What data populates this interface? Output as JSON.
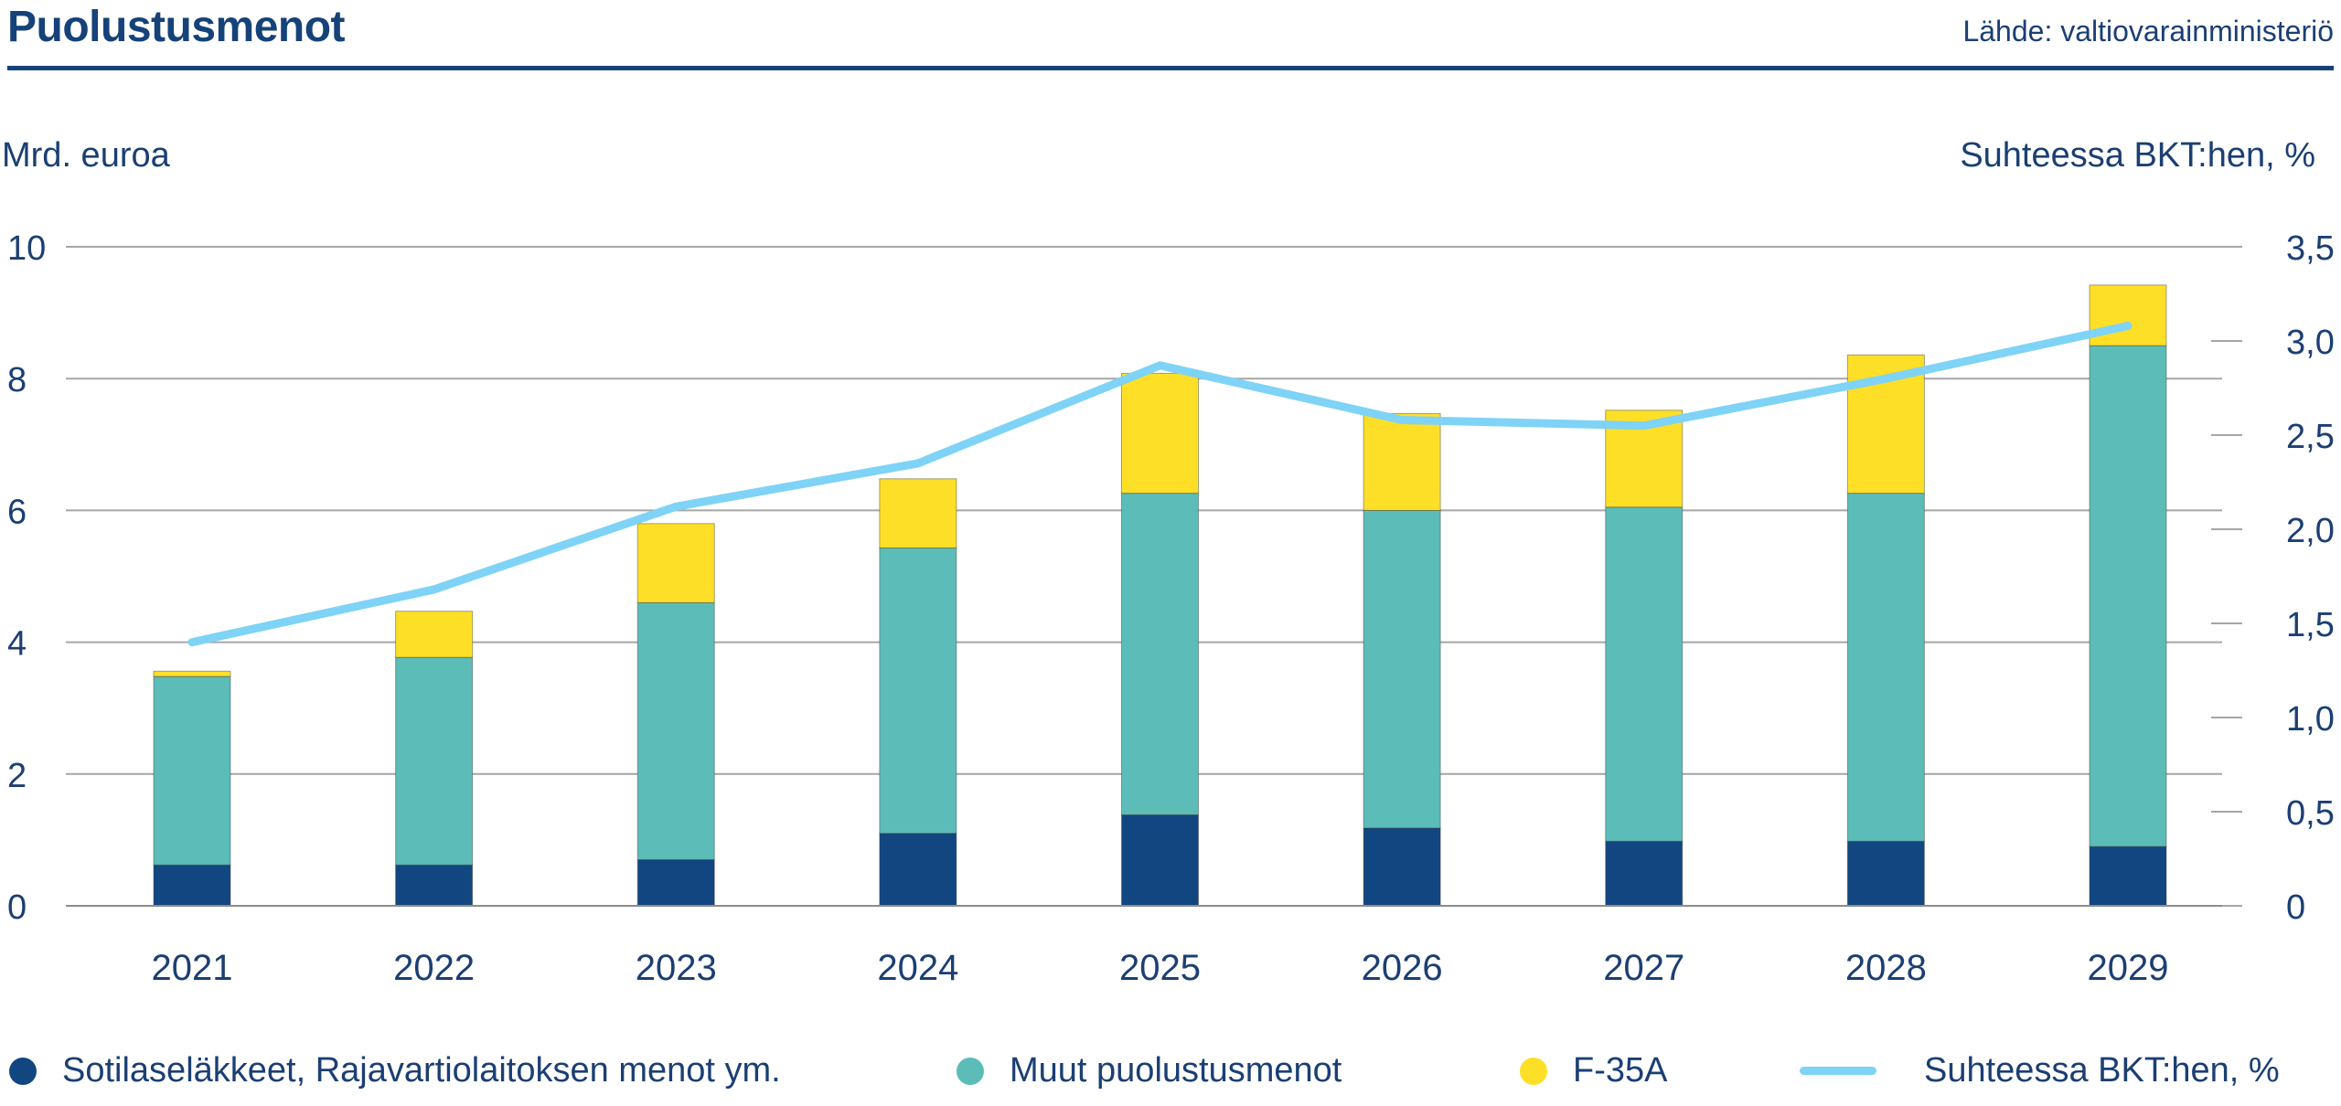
{
  "header": {
    "title": "Puolustusmenot",
    "source": "Lähde: valtiovarainministeriö"
  },
  "colors": {
    "navy": "#124680",
    "teal": "#5cbcb8",
    "yellow": "#fedf27",
    "line": "#7ed3f6",
    "text": "#1b3f73",
    "grid": "#a6a6a6"
  },
  "chart_data": {
    "type": "bar",
    "stacked": true,
    "categories": [
      "2021",
      "2022",
      "2023",
      "2024",
      "2025",
      "2026",
      "2027",
      "2028",
      "2029"
    ],
    "series": [
      {
        "name": "Sotilaseläkkeet, Rajavartiolaitoksen menot ym.",
        "type": "bar",
        "axis": "left",
        "values": [
          0.62,
          0.62,
          0.7,
          1.1,
          1.38,
          1.18,
          0.98,
          0.98,
          0.9
        ]
      },
      {
        "name": "Muut puolustusmenot",
        "type": "bar",
        "axis": "left",
        "values": [
          2.86,
          3.15,
          3.9,
          4.33,
          4.88,
          4.82,
          5.07,
          5.28,
          7.6
        ]
      },
      {
        "name": "F-35A",
        "type": "bar",
        "axis": "left",
        "values": [
          0.08,
          0.7,
          1.2,
          1.05,
          1.82,
          1.47,
          1.47,
          2.1,
          0.92
        ]
      },
      {
        "name": "Suhteessa BKT:hen, %",
        "type": "line",
        "axis": "right",
        "values": [
          1.4,
          1.68,
          2.12,
          2.35,
          2.87,
          2.58,
          2.55,
          2.8,
          3.08
        ]
      }
    ],
    "left_axis": {
      "label": "Mrd.  euroa",
      "min": 0,
      "max": 10,
      "ticks": [
        0,
        2,
        4,
        6,
        8,
        10
      ],
      "tick_labels": [
        "0",
        "2",
        "4",
        "6",
        "8",
        "10"
      ]
    },
    "right_axis": {
      "label": "Suhteessa BKT:hen, %",
      "min": 0,
      "max": 3.5,
      "ticks": [
        0,
        0.5,
        1.0,
        1.5,
        2.0,
        2.5,
        3.0,
        3.5
      ],
      "tick_labels": [
        "0",
        "0,5",
        "1,0",
        "1,5",
        "2,0",
        "2,5",
        "3,0",
        "3,5"
      ]
    },
    "grid": true,
    "legend_position": "bottom"
  },
  "legend": {
    "items": [
      {
        "label": "Sotilaseläkkeet, Rajavartiolaitoksen menot ym.",
        "kind": "dot",
        "color": "#124680"
      },
      {
        "label": "Muut puolustusmenot",
        "kind": "dot",
        "color": "#5cbcb8"
      },
      {
        "label": "F-35A",
        "kind": "dot",
        "color": "#fedf27"
      },
      {
        "label": "Suhteessa  BKT:hen,  %",
        "kind": "line",
        "color": "#7ed3f6"
      }
    ]
  }
}
